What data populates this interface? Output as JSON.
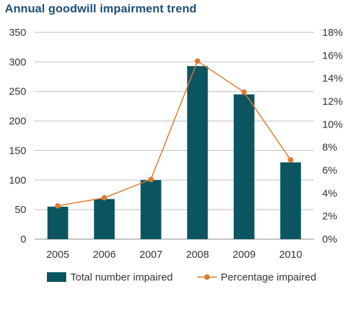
{
  "chart_data": {
    "type": "bar",
    "title": "Annual goodwill impairment trend",
    "categories": [
      "2005",
      "2006",
      "2007",
      "2008",
      "2009",
      "2010"
    ],
    "series": [
      {
        "name": "Total number impaired",
        "type": "bar",
        "axis": "left",
        "color": "#0b5560",
        "values": [
          55,
          68,
          100,
          293,
          245,
          130
        ]
      },
      {
        "name": "Percentage impaired",
        "type": "line",
        "axis": "right",
        "color": "#e07a2f",
        "values": [
          2.9,
          3.6,
          5.2,
          15.5,
          12.8,
          6.9
        ]
      }
    ],
    "y_left": {
      "min": 0,
      "max": 350,
      "ticks": [
        "0",
        "50",
        "100",
        "150",
        "200",
        "250",
        "300",
        "350"
      ]
    },
    "y_right": {
      "min": 0,
      "max": 18,
      "ticks": [
        "0%",
        "2%",
        "4%",
        "6%",
        "8%",
        "10%",
        "12%",
        "14%",
        "16%",
        "18%"
      ]
    },
    "grid": true,
    "legend_position": "bottom"
  }
}
